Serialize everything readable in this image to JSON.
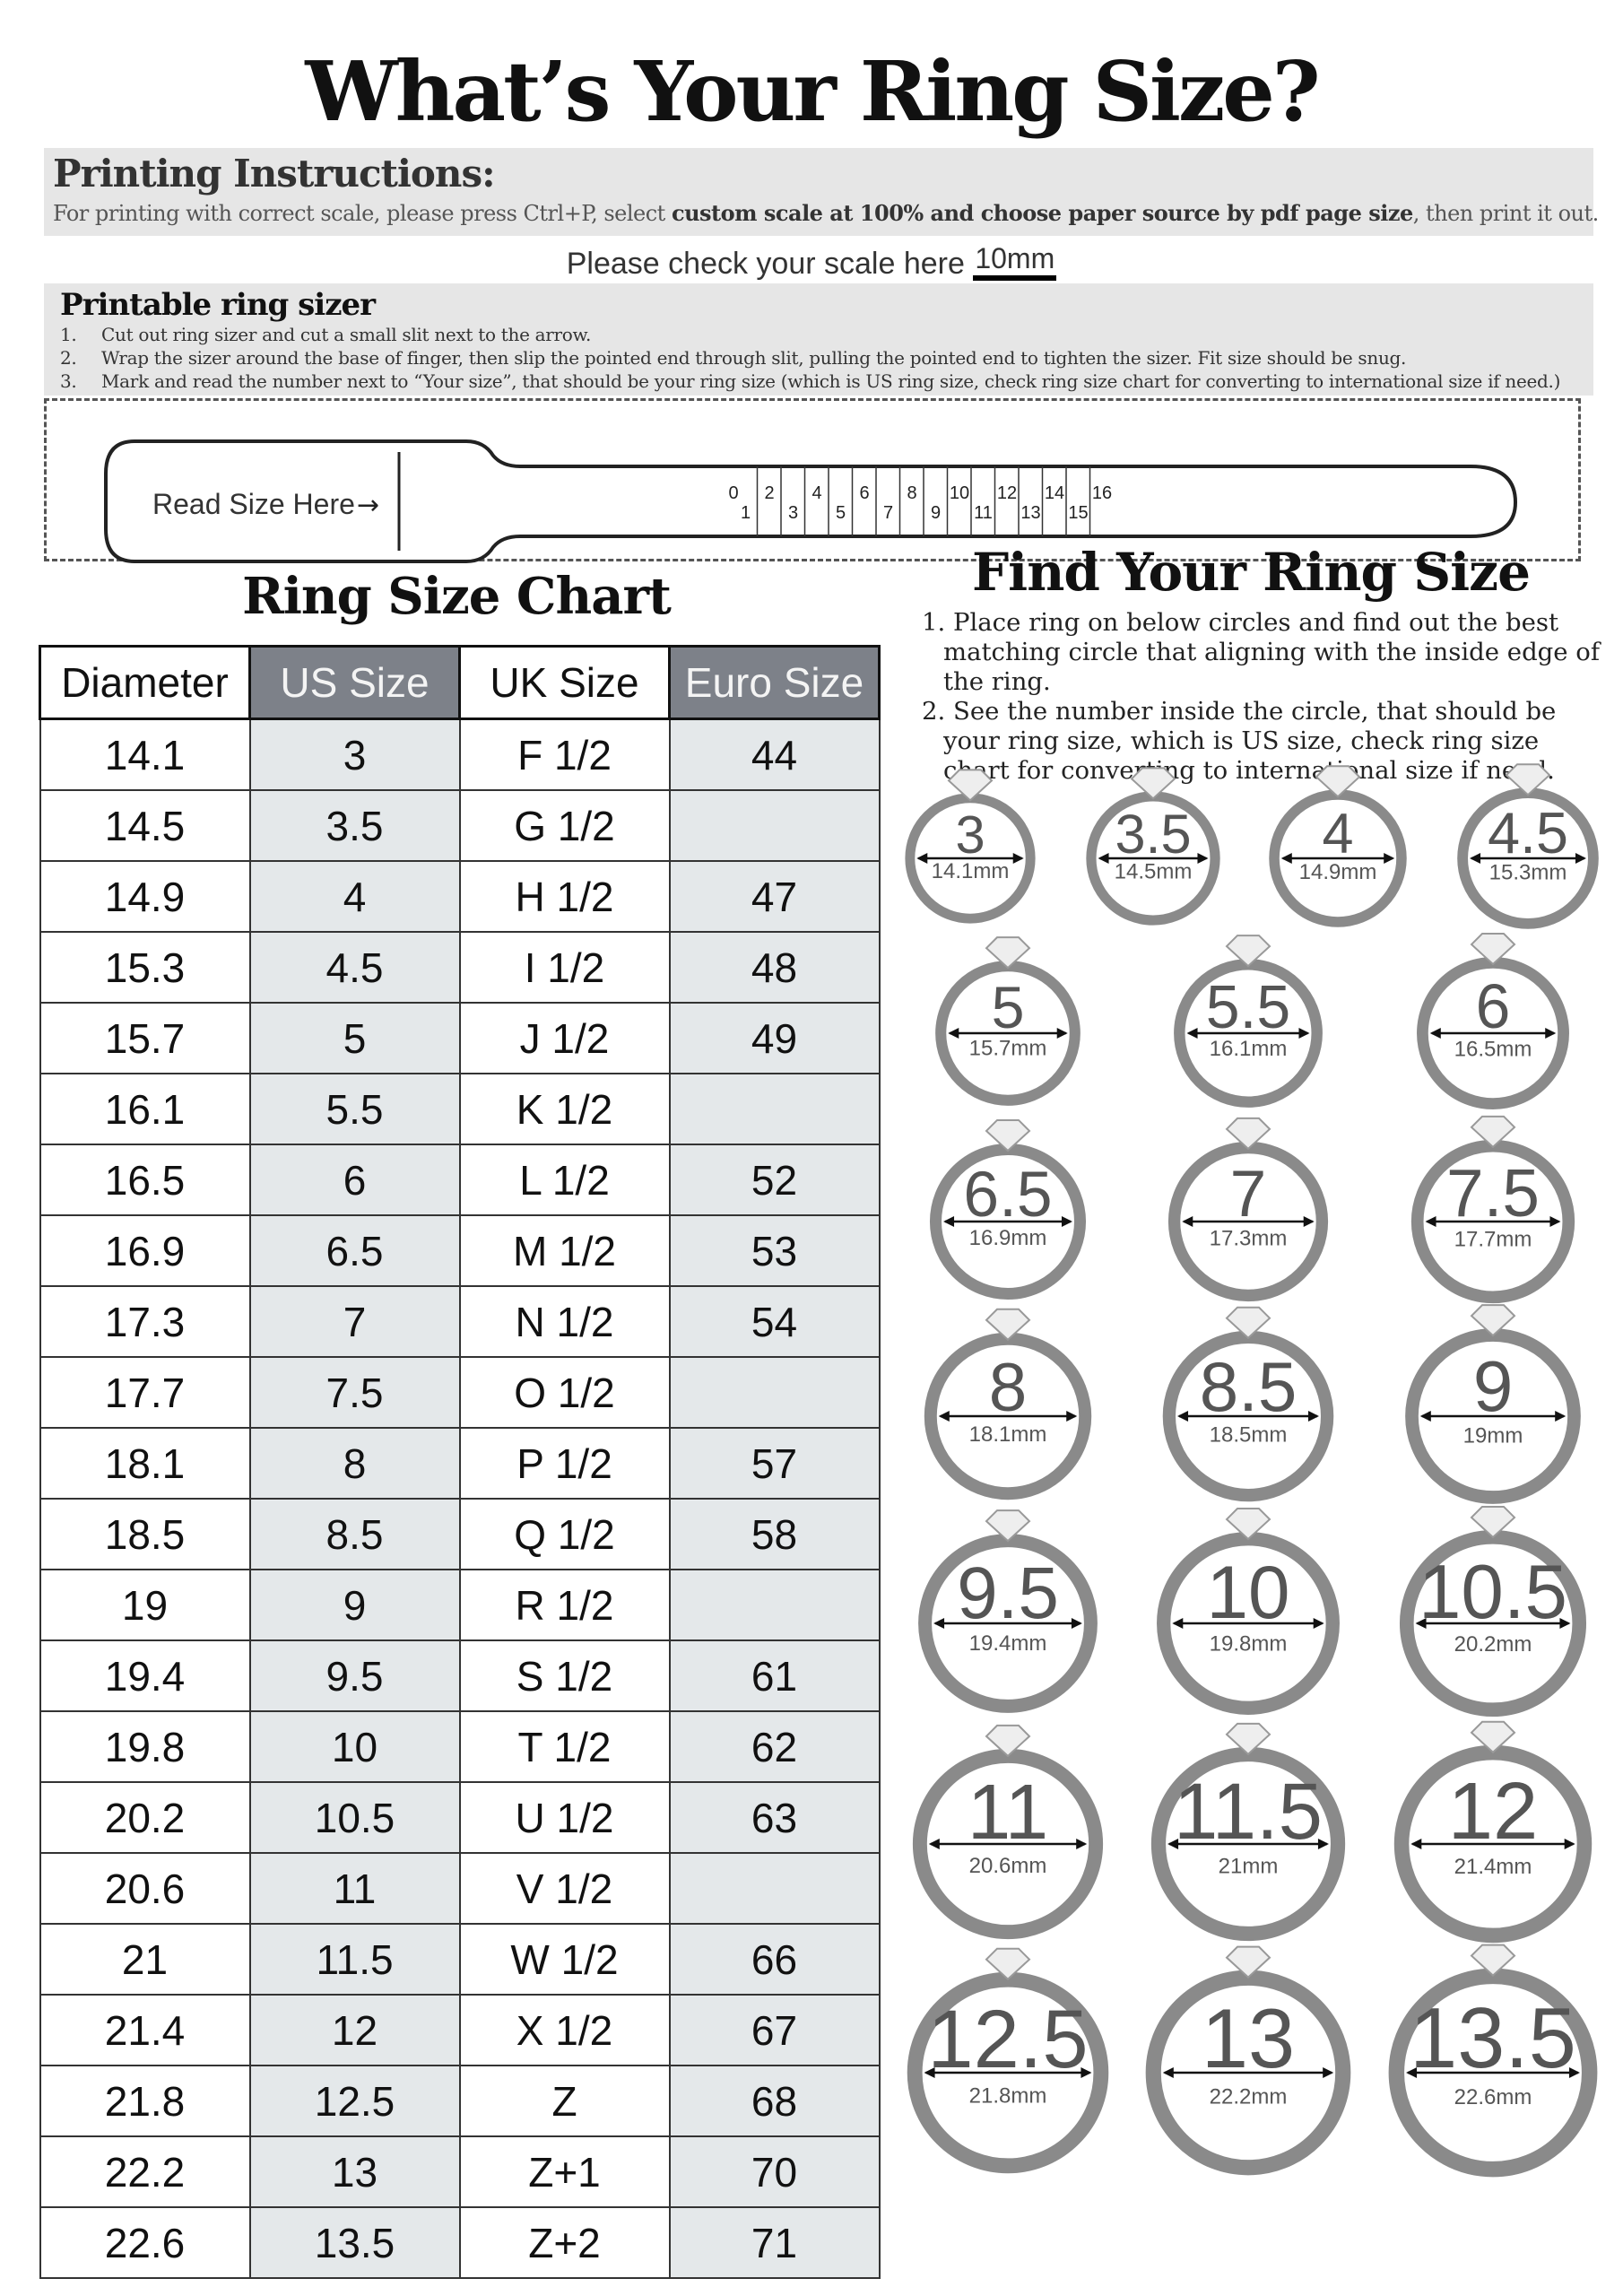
{
  "title": "What’s Your Ring Size?",
  "printing": {
    "heading": "Printing Instructions:",
    "text_before": "For printing with correct scale, please press Ctrl+P, select ",
    "text_bold": "custom scale at 100% and choose paper source by pdf page size",
    "text_after": ", then print it out."
  },
  "scale": {
    "label": "Please check your scale here",
    "value": "10mm"
  },
  "sizer": {
    "heading": "Printable ring sizer",
    "steps": [
      {
        "num": "1.",
        "text": "Cut out ring sizer and cut a small slit next to the arrow."
      },
      {
        "num": "2.",
        "text": "Wrap the sizer around the base of finger, then slip the pointed end through slit, pulling the pointed end to tighten the sizer. Fit size should be snug."
      },
      {
        "num": "3.",
        "text": "Mark and read the number next to “Your size”, that should be your ring size (which is US ring size, check ring size chart for converting to international size if need.)"
      }
    ],
    "read_label": "Read Size Here",
    "ticks_top": [
      "0",
      "2",
      "4",
      "6",
      "8",
      "10",
      "12",
      "14",
      "16"
    ],
    "ticks_bottom": [
      "1",
      "3",
      "5",
      "7",
      "9",
      "11",
      "13",
      "15"
    ]
  },
  "chart": {
    "title": "Ring Size Chart",
    "headers": [
      "Diameter",
      "US Size",
      "UK Size",
      "Euro Size"
    ],
    "rows": [
      [
        "14.1",
        "3",
        "F 1/2",
        "44"
      ],
      [
        "14.5",
        "3.5",
        "G 1/2",
        ""
      ],
      [
        "14.9",
        "4",
        "H 1/2",
        "47"
      ],
      [
        "15.3",
        "4.5",
        "I 1/2",
        "48"
      ],
      [
        "15.7",
        "5",
        "J 1/2",
        "49"
      ],
      [
        "16.1",
        "5.5",
        "K 1/2",
        ""
      ],
      [
        "16.5",
        "6",
        "L 1/2",
        "52"
      ],
      [
        "16.9",
        "6.5",
        "M 1/2",
        "53"
      ],
      [
        "17.3",
        "7",
        "N 1/2",
        "54"
      ],
      [
        "17.7",
        "7.5",
        "O 1/2",
        ""
      ],
      [
        "18.1",
        "8",
        "P 1/2",
        "57"
      ],
      [
        "18.5",
        "8.5",
        "Q 1/2",
        "58"
      ],
      [
        "19",
        "9",
        "R 1/2",
        ""
      ],
      [
        "19.4",
        "9.5",
        "S 1/2",
        "61"
      ],
      [
        "19.8",
        "10",
        "T 1/2",
        "62"
      ],
      [
        "20.2",
        "10.5",
        "U 1/2",
        "63"
      ],
      [
        "20.6",
        "11",
        "V 1/2",
        ""
      ],
      [
        "21",
        "11.5",
        "W 1/2",
        "66"
      ],
      [
        "21.4",
        "12",
        "X 1/2",
        "67"
      ],
      [
        "21.8",
        "12.5",
        "Z",
        "68"
      ],
      [
        "22.2",
        "13",
        "Z+1",
        "70"
      ],
      [
        "22.6",
        "13.5",
        "Z+2",
        "71"
      ]
    ]
  },
  "find": {
    "title": "Find Your Ring Size",
    "steps": [
      "1. Place ring on below circles and find out the best matching circle that aligning with the inside edge of the ring.",
      "2. See the number inside the circle, that should be your ring size, which is US size, check ring size chart for converting to international size if need."
    ],
    "rings": [
      {
        "size": "3",
        "mm": "14.1mm",
        "d": 14.1
      },
      {
        "size": "3.5",
        "mm": "14.5mm",
        "d": 14.5
      },
      {
        "size": "4",
        "mm": "14.9mm",
        "d": 14.9
      },
      {
        "size": "4.5",
        "mm": "15.3mm",
        "d": 15.3
      },
      {
        "size": "5",
        "mm": "15.7mm",
        "d": 15.7
      },
      {
        "size": "5.5",
        "mm": "16.1mm",
        "d": 16.1
      },
      {
        "size": "6",
        "mm": "16.5mm",
        "d": 16.5
      },
      {
        "size": "6.5",
        "mm": "16.9mm",
        "d": 16.9
      },
      {
        "size": "7",
        "mm": "17.3mm",
        "d": 17.3
      },
      {
        "size": "7.5",
        "mm": "17.7mm",
        "d": 17.7
      },
      {
        "size": "8",
        "mm": "18.1mm",
        "d": 18.1
      },
      {
        "size": "8.5",
        "mm": "18.5mm",
        "d": 18.5
      },
      {
        "size": "9",
        "mm": "19mm",
        "d": 19
      },
      {
        "size": "9.5",
        "mm": "19.4mm",
        "d": 19.4
      },
      {
        "size": "10",
        "mm": "19.8mm",
        "d": 19.8
      },
      {
        "size": "10.5",
        "mm": "20.2mm",
        "d": 20.2
      },
      {
        "size": "11",
        "mm": "20.6mm",
        "d": 20.6
      },
      {
        "size": "11.5",
        "mm": "21mm",
        "d": 21
      },
      {
        "size": "12",
        "mm": "21.4mm",
        "d": 21.4
      },
      {
        "size": "12.5",
        "mm": "21.8mm",
        "d": 21.8
      },
      {
        "size": "13",
        "mm": "22.2mm",
        "d": 22.2
      },
      {
        "size": "13.5",
        "mm": "22.6mm",
        "d": 22.6
      }
    ],
    "ring_color": "#8a8a8a",
    "number_color": "#555555"
  }
}
